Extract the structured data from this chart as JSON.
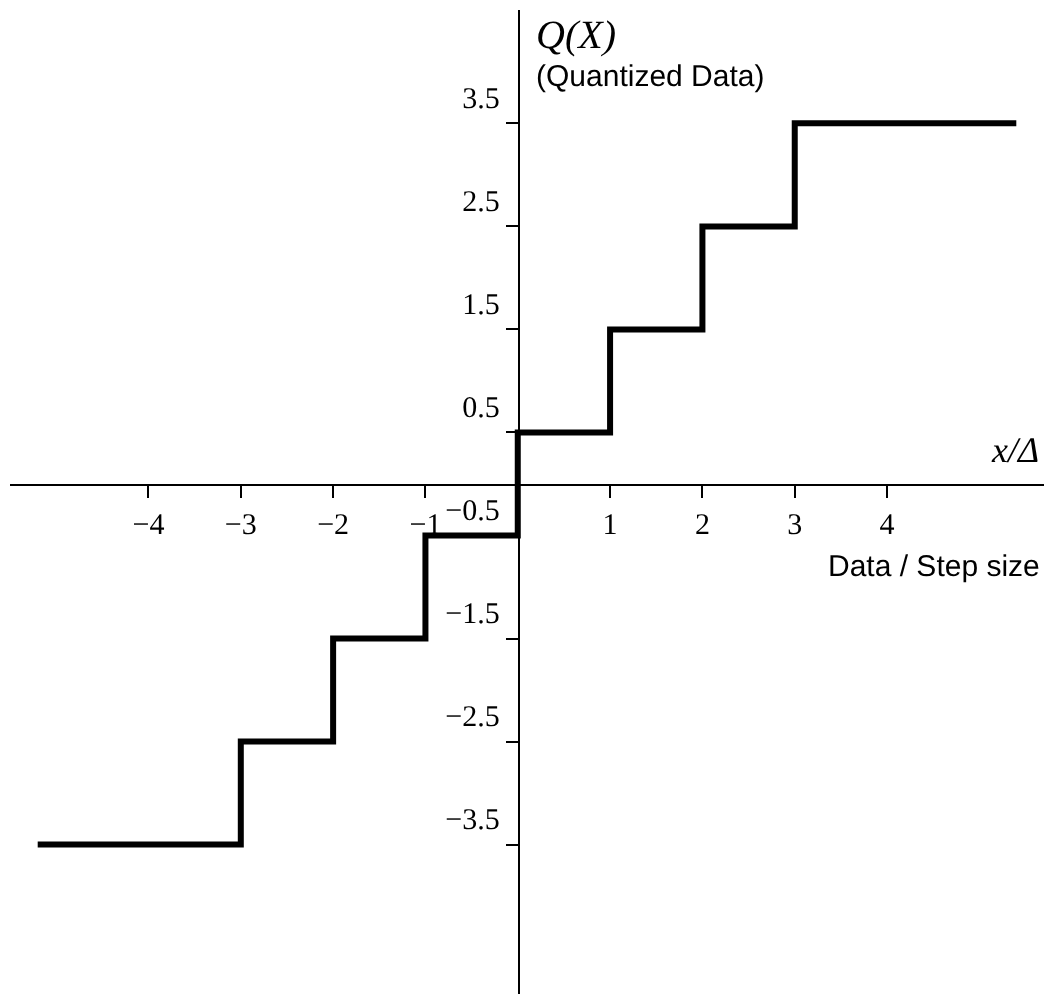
{
  "chart_data": {
    "type": "step",
    "xlabel": "x/Δ",
    "ylabel": "Q(X)",
    "annotations": [
      "(Quantized Data)",
      "Data / Step size"
    ],
    "x": [
      -5.2,
      -3,
      -2,
      -1,
      0,
      1,
      2,
      3,
      5.4
    ],
    "series": [
      {
        "color": "#000000",
        "values": [
          -3.5,
          -2.5,
          -1.5,
          -0.5,
          0.5,
          1.5,
          2.5,
          3.5,
          3.5
        ]
      }
    ],
    "xlim": [
      -5.5,
      5.7
    ],
    "ylim": [
      -4.95,
      4.6
    ],
    "xticks": [
      {
        "value": -4,
        "label": "−4"
      },
      {
        "value": -3,
        "label": "−3"
      },
      {
        "value": -2,
        "label": "−2"
      },
      {
        "value": -1,
        "label": "−1"
      },
      1,
      2,
      3,
      4
    ],
    "yticks": [
      {
        "value": -3.5,
        "label": "−3.5"
      },
      {
        "value": -2.5,
        "label": "−2.5"
      },
      {
        "value": -1.5,
        "label": "−1.5"
      },
      {
        "value": -0.5,
        "label": "−0.5"
      },
      0.5,
      1.5,
      2.5,
      3.5
    ],
    "legend": false,
    "marker": "none",
    "line_style": "solid"
  }
}
